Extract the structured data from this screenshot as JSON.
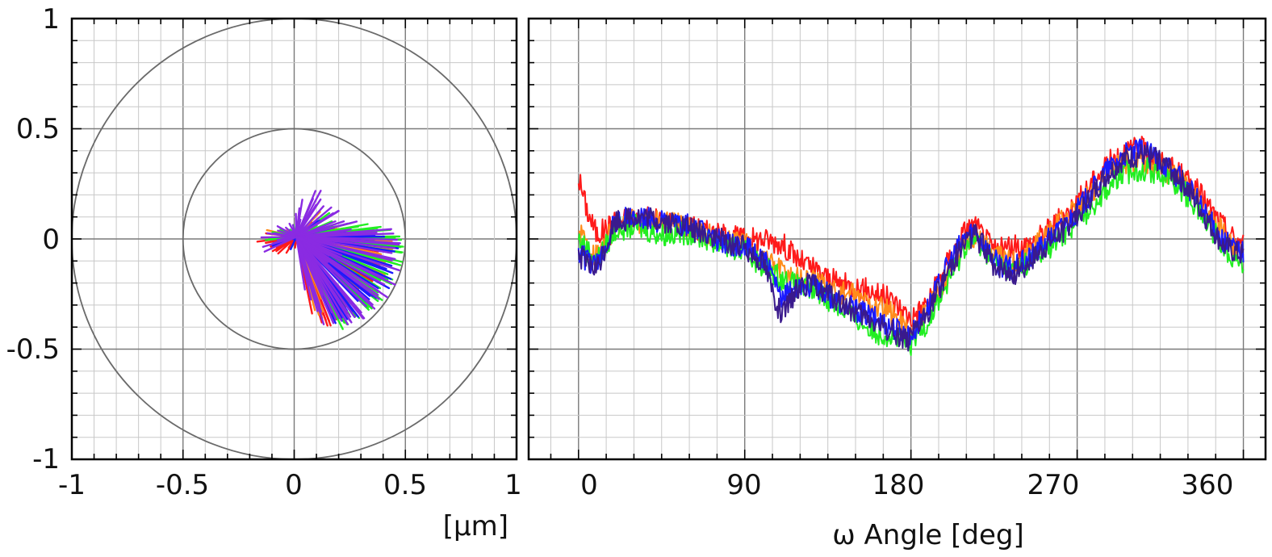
{
  "chart_data": [
    {
      "type": "scatter",
      "subtype": "polar-runout-vectors",
      "xlabel": "[µm]",
      "ylabel": "",
      "xlim": [
        -1,
        1
      ],
      "ylim": [
        -1,
        1
      ],
      "x_ticks": [
        "-1",
        "-0.5",
        "0",
        "0.5",
        "1"
      ],
      "y_ticks": [
        "1",
        "0.5",
        "0",
        "-0.5",
        "-1"
      ],
      "grid": true,
      "reference_circles": [
        1.0,
        0.5
      ],
      "series": [
        {
          "color": "#ff1a1a",
          "points": [
            [
              -0.15,
              0.0
            ],
            [
              -0.05,
              -0.06
            ],
            [
              0.05,
              0.02
            ],
            [
              0.2,
              0.0
            ],
            [
              0.35,
              -0.1
            ],
            [
              0.42,
              -0.02
            ],
            [
              0.3,
              -0.25
            ],
            [
              0.15,
              -0.4
            ],
            [
              0.08,
              -0.3
            ],
            [
              0.1,
              0.12
            ]
          ]
        },
        {
          "color": "#ff8c1a",
          "points": [
            [
              -0.1,
              0.02
            ],
            [
              0.06,
              0.04
            ],
            [
              0.25,
              0.02
            ],
            [
              0.45,
              0.0
            ],
            [
              0.38,
              -0.15
            ],
            [
              0.25,
              -0.28
            ],
            [
              0.12,
              -0.35
            ],
            [
              0.1,
              0.15
            ]
          ]
        },
        {
          "color": "#22ee22",
          "points": [
            [
              -0.12,
              -0.02
            ],
            [
              0.02,
              0.06
            ],
            [
              0.3,
              0.05
            ],
            [
              0.48,
              0.01
            ],
            [
              0.46,
              -0.12
            ],
            [
              0.35,
              -0.3
            ],
            [
              0.2,
              -0.38
            ],
            [
              0.12,
              0.18
            ]
          ]
        },
        {
          "color": "#1a1aff",
          "points": [
            [
              -0.1,
              -0.03
            ],
            [
              0.2,
              0.03
            ],
            [
              0.47,
              -0.03
            ],
            [
              0.4,
              -0.22
            ],
            [
              0.28,
              -0.33
            ],
            [
              0.18,
              -0.36
            ],
            [
              0.09,
              0.16
            ]
          ]
        },
        {
          "color": "#8a2be2",
          "points": [
            [
              -0.16,
              -0.04
            ],
            [
              -0.02,
              0.05
            ],
            [
              0.1,
              0.21
            ],
            [
              0.22,
              0.07
            ],
            [
              0.46,
              0.02
            ],
            [
              0.44,
              -0.18
            ],
            [
              0.32,
              -0.34
            ],
            [
              0.16,
              -0.38
            ],
            [
              0.06,
              -0.2
            ],
            [
              0.2,
              -0.06
            ]
          ]
        }
      ]
    },
    {
      "type": "line",
      "xlabel": "ω Angle [deg]",
      "ylabel": "",
      "xlim": [
        -27,
        372
      ],
      "ylim": [
        -1,
        1
      ],
      "x_ticks": [
        "0",
        "90",
        "180",
        "270",
        "360"
      ],
      "grid": true,
      "series": [
        {
          "color": "#ff1a1a",
          "x": [
            0,
            5,
            10,
            20,
            30,
            45,
            60,
            75,
            90,
            100,
            110,
            120,
            130,
            140,
            150,
            160,
            170,
            180,
            190,
            200,
            210,
            215,
            225,
            235,
            245,
            255,
            265,
            275,
            285,
            295,
            305,
            315,
            325,
            335,
            345,
            350,
            355,
            360
          ],
          "y": [
            0.28,
            0.12,
            0.02,
            0.08,
            0.1,
            0.08,
            0.06,
            0.02,
            0.0,
            0.0,
            -0.02,
            -0.1,
            -0.15,
            -0.2,
            -0.22,
            -0.24,
            -0.28,
            -0.36,
            -0.28,
            -0.1,
            0.05,
            0.06,
            -0.05,
            -0.04,
            -0.02,
            0.05,
            0.12,
            0.22,
            0.33,
            0.4,
            0.41,
            0.35,
            0.3,
            0.22,
            0.1,
            0.05,
            0.0,
            -0.02
          ]
        },
        {
          "color": "#ff8c1a",
          "x": [
            0,
            5,
            10,
            20,
            30,
            45,
            60,
            75,
            90,
            100,
            110,
            120,
            130,
            140,
            150,
            160,
            170,
            180,
            190,
            200,
            210,
            215,
            225,
            235,
            245,
            255,
            265,
            275,
            285,
            295,
            305,
            315,
            325,
            335,
            345,
            350,
            355,
            360
          ],
          "y": [
            0.05,
            -0.04,
            -0.08,
            0.06,
            0.08,
            0.08,
            0.06,
            0.0,
            -0.02,
            -0.08,
            -0.14,
            -0.18,
            -0.2,
            -0.24,
            -0.26,
            -0.3,
            -0.34,
            -0.42,
            -0.32,
            -0.15,
            0.0,
            0.02,
            -0.08,
            -0.1,
            -0.05,
            0.03,
            0.1,
            0.18,
            0.28,
            0.35,
            0.36,
            0.33,
            0.27,
            0.18,
            0.06,
            0.02,
            -0.04,
            -0.08
          ]
        },
        {
          "color": "#22ee22",
          "x": [
            0,
            5,
            10,
            20,
            30,
            45,
            60,
            75,
            90,
            100,
            110,
            120,
            130,
            140,
            150,
            160,
            170,
            180,
            190,
            200,
            210,
            215,
            225,
            235,
            245,
            255,
            265,
            275,
            285,
            295,
            305,
            315,
            325,
            335,
            345,
            350,
            355,
            360
          ],
          "y": [
            0.0,
            -0.05,
            -0.1,
            0.04,
            0.06,
            0.02,
            0.03,
            -0.02,
            -0.06,
            -0.12,
            -0.18,
            -0.22,
            -0.24,
            -0.3,
            -0.36,
            -0.42,
            -0.44,
            -0.48,
            -0.36,
            -0.2,
            -0.02,
            0.0,
            -0.1,
            -0.14,
            -0.1,
            -0.04,
            0.04,
            0.12,
            0.22,
            0.3,
            0.32,
            0.3,
            0.24,
            0.14,
            0.02,
            -0.04,
            -0.08,
            -0.12
          ]
        },
        {
          "color": "#1a1aff",
          "x": [
            0,
            5,
            10,
            20,
            30,
            45,
            60,
            75,
            90,
            100,
            110,
            120,
            130,
            140,
            150,
            160,
            170,
            180,
            190,
            200,
            210,
            215,
            225,
            235,
            245,
            255,
            265,
            275,
            285,
            295,
            305,
            315,
            325,
            335,
            345,
            350,
            355,
            360
          ],
          "y": [
            -0.05,
            -0.1,
            -0.12,
            0.08,
            0.1,
            0.08,
            0.06,
            0.0,
            -0.04,
            -0.08,
            -0.28,
            -0.2,
            -0.22,
            -0.28,
            -0.32,
            -0.36,
            -0.4,
            -0.44,
            -0.3,
            -0.12,
            0.02,
            0.04,
            -0.1,
            -0.14,
            -0.08,
            0.0,
            0.08,
            0.18,
            0.3,
            0.38,
            0.4,
            0.36,
            0.28,
            0.18,
            0.04,
            -0.02,
            -0.04,
            -0.06
          ]
        },
        {
          "color": "#3a1a8c",
          "x": [
            0,
            5,
            10,
            20,
            30,
            45,
            60,
            75,
            90,
            100,
            110,
            120,
            130,
            140,
            150,
            160,
            170,
            180,
            190,
            200,
            210,
            215,
            225,
            235,
            245,
            255,
            265,
            275,
            285,
            295,
            305,
            315,
            325,
            335,
            345,
            350,
            355,
            360
          ],
          "y": [
            -0.07,
            -0.12,
            -0.14,
            0.08,
            0.1,
            0.08,
            0.05,
            0.0,
            -0.04,
            -0.1,
            -0.36,
            -0.2,
            -0.22,
            -0.28,
            -0.34,
            -0.38,
            -0.42,
            -0.46,
            -0.32,
            -0.14,
            0.0,
            0.02,
            -0.12,
            -0.16,
            -0.1,
            -0.02,
            0.06,
            0.16,
            0.28,
            0.36,
            0.38,
            0.36,
            0.28,
            0.16,
            0.02,
            -0.04,
            -0.06,
            -0.08
          ]
        }
      ]
    }
  ]
}
